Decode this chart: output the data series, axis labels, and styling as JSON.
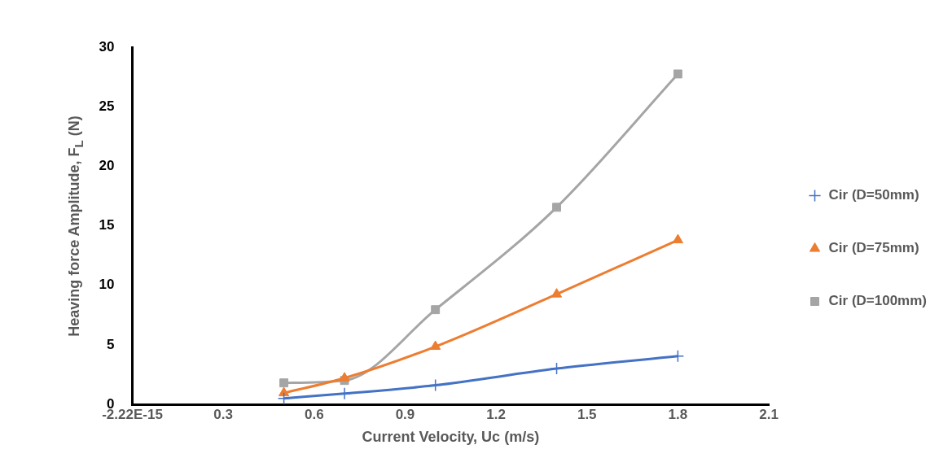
{
  "chart_data": {
    "type": "line",
    "xlabel": "Current Velocity, Uc (m/s)",
    "ylabel": "Heaving force Amplitude, F$_{L}$ (N)",
    "xlim": [
      0,
      2.1
    ],
    "xticks": [
      {
        "value": 0,
        "label": "-2.22E-15"
      },
      0.3,
      0.6,
      0.9,
      1.2,
      1.5,
      1.8,
      2.1
    ],
    "ylim": [
      0,
      30
    ],
    "yticks": [
      0,
      5,
      10,
      15,
      20,
      25,
      30
    ],
    "grid": false,
    "legend": "right",
    "series": [
      {
        "name": "Cir (D=50mm)",
        "color": "#4472c4",
        "marker": "cross",
        "x": [
          0.5,
          0.7,
          1.0,
          1.4,
          1.8
        ],
        "values": [
          0.5,
          0.9,
          1.6,
          3.0,
          4.05
        ]
      },
      {
        "name": "Cir (D=75mm)",
        "color": "#ed7d31",
        "marker": "triangle",
        "x": [
          0.5,
          0.7,
          1.0,
          1.4,
          1.8
        ],
        "values": [
          0.95,
          2.2,
          4.85,
          9.25,
          13.8
        ]
      },
      {
        "name": "Cir (D=100mm)",
        "color": "#a5a5a5",
        "marker": "square",
        "x": [
          0.5,
          0.7,
          1.0,
          1.4,
          1.8
        ],
        "values": [
          1.8,
          2.0,
          7.95,
          16.55,
          27.75
        ]
      }
    ]
  }
}
